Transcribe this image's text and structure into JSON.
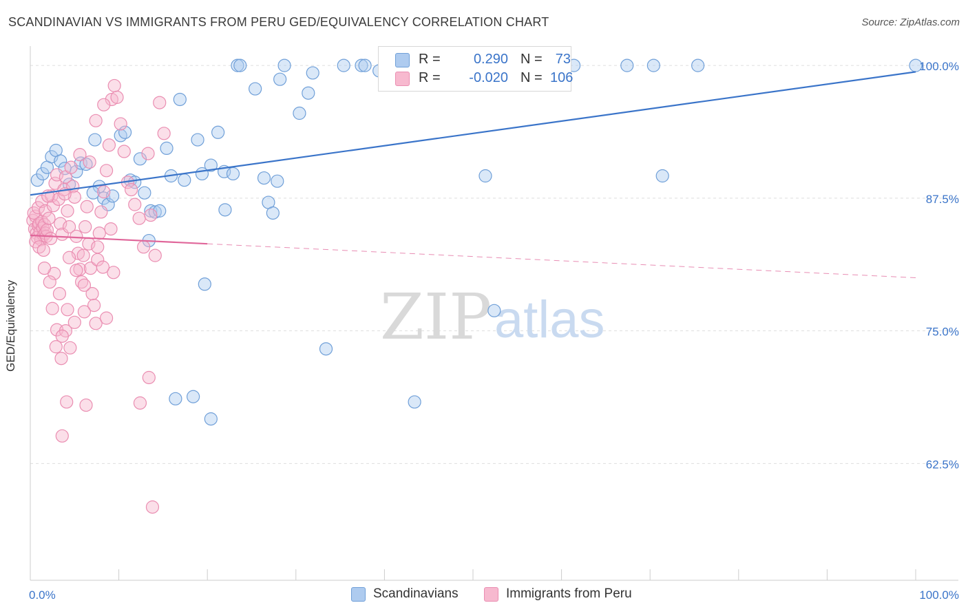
{
  "title": "SCANDINAVIAN VS IMMIGRANTS FROM PERU GED/EQUIVALENCY CORRELATION CHART",
  "source": "Source: ZipAtlas.com",
  "watermark": {
    "part1": "ZIP",
    "part2": "atlas"
  },
  "colors": {
    "blue": "#3a74c9",
    "blue_fill": "#aecbef",
    "blue_stroke": "#6f9fd8",
    "pink": "#e0669a",
    "pink_fill": "#f7b9cf",
    "pink_stroke": "#ea8db1",
    "grid": "#dddddd"
  },
  "legend": {
    "rows": [
      {
        "r_label": "R =",
        "r_value": "0.290",
        "n_label": "N =",
        "n_value": "73"
      },
      {
        "r_label": "R =",
        "r_value": "-0.020",
        "n_label": "N =",
        "n_value": "106"
      }
    ]
  },
  "bottom_legend": [
    "Scandinavians",
    "Immigrants from Peru"
  ],
  "chart_data": {
    "type": "scatter",
    "title": "SCANDINAVIAN VS IMMIGRANTS FROM PERU GED/EQUIVALENCY CORRELATION CHART",
    "xlabel": "",
    "ylabel": "GED/Equivalency",
    "xlim": [
      0,
      100
    ],
    "ylim": [
      51.5,
      101.5
    ],
    "x_tick_labels": [
      "0.0%",
      "100.0%"
    ],
    "y_ticks": [
      62.5,
      75.0,
      87.5,
      100.0
    ],
    "y_tick_labels": [
      "62.5%",
      "75.0%",
      "87.5%",
      "100.0%"
    ],
    "grid": true,
    "series": [
      {
        "name": "Scandinavians",
        "r": 0.29,
        "n": 73,
        "trend": {
          "x": [
            0,
            100
          ],
          "y": [
            87.8,
            99.4
          ],
          "dashed_from": null
        },
        "points": [
          [
            0.8,
            89.2
          ],
          [
            1.4,
            89.8
          ],
          [
            1.9,
            90.4
          ],
          [
            2.4,
            91.4
          ],
          [
            2.9,
            92.0
          ],
          [
            3.4,
            91.0
          ],
          [
            3.9,
            90.3
          ],
          [
            4.4,
            88.8
          ],
          [
            5.2,
            90.0
          ],
          [
            5.7,
            90.8
          ],
          [
            6.3,
            90.7
          ],
          [
            7.3,
            93.0
          ],
          [
            7.8,
            88.6
          ],
          [
            8.3,
            87.5
          ],
          [
            8.8,
            86.9
          ],
          [
            9.3,
            87.7
          ],
          [
            10.2,
            93.4
          ],
          [
            10.7,
            93.7
          ],
          [
            11.3,
            89.2
          ],
          [
            11.8,
            89.0
          ],
          [
            12.4,
            91.2
          ],
          [
            12.9,
            88.0
          ],
          [
            13.6,
            86.3
          ],
          [
            14.1,
            86.2
          ],
          [
            14.6,
            86.3
          ],
          [
            13.4,
            83.5
          ],
          [
            15.4,
            92.2
          ],
          [
            15.9,
            89.6
          ],
          [
            16.9,
            96.8
          ],
          [
            17.4,
            89.2
          ],
          [
            18.9,
            93.0
          ],
          [
            19.4,
            89.8
          ],
          [
            20.4,
            90.6
          ],
          [
            21.2,
            93.7
          ],
          [
            21.9,
            90.0
          ],
          [
            22.9,
            89.8
          ],
          [
            22.0,
            86.4
          ],
          [
            23.4,
            100.0
          ],
          [
            23.7,
            100.0
          ],
          [
            25.4,
            97.8
          ],
          [
            26.4,
            89.4
          ],
          [
            26.9,
            87.1
          ],
          [
            27.4,
            86.1
          ],
          [
            27.9,
            89.1
          ],
          [
            28.2,
            98.7
          ],
          [
            28.7,
            100.0
          ],
          [
            30.4,
            95.5
          ],
          [
            31.4,
            97.4
          ],
          [
            31.9,
            99.3
          ],
          [
            35.4,
            100.0
          ],
          [
            37.4,
            100.0
          ],
          [
            37.8,
            100.0
          ],
          [
            39.4,
            99.5
          ],
          [
            41.4,
            100.0
          ],
          [
            48.4,
            100.0
          ],
          [
            51.9,
            100.0
          ],
          [
            53.4,
            100.0
          ],
          [
            56.4,
            100.0
          ],
          [
            61.4,
            100.0
          ],
          [
            67.4,
            100.0
          ],
          [
            70.4,
            100.0
          ],
          [
            75.4,
            100.0
          ],
          [
            100.0,
            100.0
          ],
          [
            51.4,
            89.6
          ],
          [
            71.4,
            89.6
          ],
          [
            19.7,
            79.4
          ],
          [
            52.4,
            76.9
          ],
          [
            33.4,
            73.3
          ],
          [
            16.4,
            68.6
          ],
          [
            18.4,
            68.8
          ],
          [
            43.4,
            68.3
          ],
          [
            20.4,
            66.7
          ],
          [
            7.1,
            88.0
          ]
        ]
      },
      {
        "name": "Immigrants from Peru",
        "r": -0.02,
        "n": 106,
        "trend": {
          "x": [
            0,
            100
          ],
          "y": [
            84.0,
            80.0
          ],
          "dashed_from": 20
        },
        "points": [
          [
            0.3,
            85.4
          ],
          [
            0.5,
            84.6
          ],
          [
            0.6,
            85.8
          ],
          [
            0.7,
            84.2
          ],
          [
            0.8,
            83.8
          ],
          [
            0.9,
            84.9
          ],
          [
            1.0,
            85.1
          ],
          [
            1.1,
            84.3
          ],
          [
            1.2,
            83.6
          ],
          [
            1.3,
            85.3
          ],
          [
            1.4,
            84.7
          ],
          [
            1.5,
            84.0
          ],
          [
            1.6,
            85.0
          ],
          [
            1.7,
            84.2
          ],
          [
            1.8,
            83.9
          ],
          [
            0.4,
            86.1
          ],
          [
            0.6,
            83.4
          ],
          [
            0.9,
            86.6
          ],
          [
            1.0,
            82.9
          ],
          [
            1.3,
            87.2
          ],
          [
            1.5,
            82.6
          ],
          [
            1.7,
            86.3
          ],
          [
            1.9,
            84.5
          ],
          [
            2.1,
            85.6
          ],
          [
            2.3,
            83.7
          ],
          [
            2.4,
            87.7
          ],
          [
            2.6,
            86.8
          ],
          [
            2.8,
            88.9
          ],
          [
            3.0,
            89.7
          ],
          [
            3.2,
            87.4
          ],
          [
            3.4,
            85.1
          ],
          [
            3.6,
            84.1
          ],
          [
            3.8,
            88.3
          ],
          [
            4.0,
            89.5
          ],
          [
            4.2,
            86.3
          ],
          [
            4.4,
            84.8
          ],
          [
            4.6,
            90.4
          ],
          [
            4.8,
            88.6
          ],
          [
            5.0,
            87.6
          ],
          [
            5.2,
            83.9
          ],
          [
            5.4,
            82.3
          ],
          [
            5.6,
            80.8
          ],
          [
            5.8,
            79.6
          ],
          [
            6.0,
            82.1
          ],
          [
            6.2,
            84.8
          ],
          [
            6.4,
            86.7
          ],
          [
            6.6,
            83.2
          ],
          [
            6.8,
            80.9
          ],
          [
            7.0,
            78.5
          ],
          [
            7.2,
            77.4
          ],
          [
            7.4,
            75.7
          ],
          [
            7.6,
            81.7
          ],
          [
            7.8,
            84.2
          ],
          [
            8.0,
            86.2
          ],
          [
            8.3,
            88.1
          ],
          [
            8.6,
            90.1
          ],
          [
            8.9,
            92.5
          ],
          [
            9.2,
            96.8
          ],
          [
            9.5,
            98.1
          ],
          [
            9.8,
            97.0
          ],
          [
            10.2,
            94.5
          ],
          [
            10.6,
            91.9
          ],
          [
            11.0,
            89.0
          ],
          [
            11.4,
            88.3
          ],
          [
            11.8,
            86.9
          ],
          [
            12.3,
            85.6
          ],
          [
            12.8,
            82.9
          ],
          [
            13.3,
            91.7
          ],
          [
            13.6,
            85.9
          ],
          [
            14.1,
            82.1
          ],
          [
            14.6,
            96.5
          ],
          [
            15.1,
            93.6
          ],
          [
            8.3,
            96.3
          ],
          [
            7.4,
            94.8
          ],
          [
            6.1,
            79.3
          ],
          [
            5.2,
            80.7
          ],
          [
            4.4,
            81.9
          ],
          [
            2.7,
            80.4
          ],
          [
            3.3,
            78.5
          ],
          [
            4.2,
            77.0
          ],
          [
            2.5,
            77.1
          ],
          [
            3.0,
            75.1
          ],
          [
            4.0,
            75.0
          ],
          [
            3.6,
            74.5
          ],
          [
            5.0,
            75.8
          ],
          [
            6.1,
            76.8
          ],
          [
            2.9,
            73.5
          ],
          [
            4.5,
            73.4
          ],
          [
            3.5,
            72.4
          ],
          [
            4.1,
            68.3
          ],
          [
            6.3,
            68.0
          ],
          [
            12.4,
            68.2
          ],
          [
            13.4,
            70.6
          ],
          [
            3.6,
            65.1
          ],
          [
            13.8,
            58.4
          ],
          [
            8.6,
            76.2
          ],
          [
            9.4,
            80.5
          ],
          [
            2.2,
            79.6
          ],
          [
            1.6,
            80.9
          ],
          [
            7.6,
            82.9
          ],
          [
            9.1,
            84.6
          ],
          [
            2.0,
            87.7
          ],
          [
            3.9,
            87.9
          ],
          [
            8.2,
            81.0
          ],
          [
            5.6,
            91.6
          ],
          [
            6.7,
            90.9
          ]
        ]
      }
    ]
  }
}
